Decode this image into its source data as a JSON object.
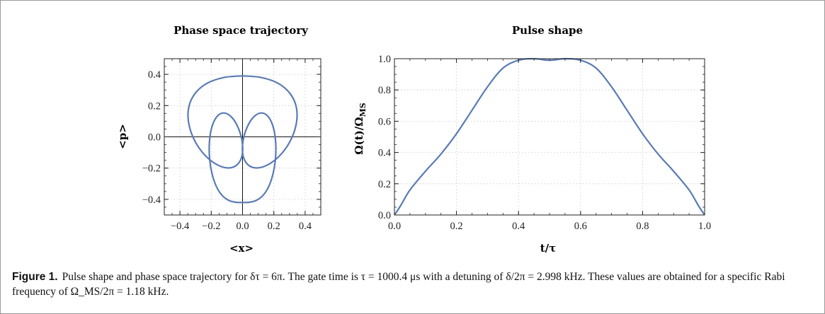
{
  "chart_data": [
    {
      "type": "line",
      "title": "Phase space trajectory",
      "xlabel": "<x>",
      "ylabel": "<p>",
      "xlim": [
        -0.5,
        0.5
      ],
      "ylim": [
        -0.5,
        0.5
      ],
      "xticks": [
        "−0.4",
        "−0.2",
        "0.0",
        "0.2",
        "0.4"
      ],
      "yticks": [
        "−0.4",
        "−0.2",
        "0.0",
        "0.2",
        "0.4"
      ],
      "grid": true,
      "series": [
        {
          "color": "#5b7bb4",
          "x": [
            0.0,
            0.119,
            0.228,
            0.306,
            0.345,
            0.342,
            0.303,
            0.238,
            0.161,
            0.087,
            0.031,
            0.002,
            0.003,
            0.029,
            0.072,
            0.121,
            0.165,
            0.197,
            0.212,
            0.21,
            0.194,
            0.167,
            0.132,
            0.091,
            0.047,
            0.0,
            -0.047,
            -0.091,
            -0.132,
            -0.167,
            -0.194,
            -0.21,
            -0.212,
            -0.197,
            -0.165,
            -0.121,
            -0.072,
            -0.029,
            -0.003,
            -0.002,
            -0.031,
            -0.087,
            -0.161,
            -0.238,
            -0.303,
            -0.342,
            -0.345,
            -0.306,
            -0.228,
            -0.119,
            0.0
          ],
          "y": [
            0.39,
            0.38,
            0.342,
            0.274,
            0.183,
            0.077,
            -0.03,
            -0.12,
            -0.179,
            -0.199,
            -0.175,
            -0.114,
            -0.027,
            0.061,
            0.128,
            0.153,
            0.128,
            0.059,
            -0.039,
            -0.145,
            -0.24,
            -0.318,
            -0.373,
            -0.405,
            -0.418,
            -0.42,
            -0.418,
            -0.405,
            -0.373,
            -0.318,
            -0.24,
            -0.145,
            -0.039,
            0.059,
            0.128,
            0.153,
            0.128,
            0.061,
            -0.027,
            -0.114,
            -0.175,
            -0.199,
            -0.179,
            -0.12,
            -0.03,
            0.077,
            0.183,
            0.274,
            0.342,
            0.38,
            0.39
          ]
        }
      ]
    },
    {
      "type": "line",
      "title": "Pulse shape",
      "xlabel": "t/τ",
      "ylabel": "Ω(t)/Ω",
      "ylabel_sub": "MS",
      "xlim": [
        0,
        1
      ],
      "ylim": [
        0,
        1
      ],
      "xticks": [
        "0.0",
        "0.2",
        "0.4",
        "0.6",
        "0.8",
        "1.0"
      ],
      "yticks": [
        "0.0",
        "0.2",
        "0.4",
        "0.6",
        "0.8",
        "1.0"
      ],
      "grid": true,
      "series": [
        {
          "color": "#5b7bb4",
          "x": [
            0.0,
            0.02,
            0.05,
            0.1,
            0.15,
            0.2,
            0.25,
            0.3,
            0.35,
            0.4,
            0.45,
            0.5,
            0.55,
            0.6,
            0.65,
            0.7,
            0.75,
            0.8,
            0.85,
            0.9,
            0.95,
            0.98,
            1.0
          ],
          "y": [
            0.0,
            0.06,
            0.16,
            0.28,
            0.39,
            0.52,
            0.67,
            0.82,
            0.94,
            0.99,
            1.0,
            0.99,
            1.0,
            0.99,
            0.94,
            0.82,
            0.67,
            0.52,
            0.39,
            0.28,
            0.16,
            0.06,
            0.0
          ]
        }
      ]
    }
  ],
  "caption": {
    "label": "Figure 1.",
    "text": "Pulse shape and phase space trajectory for δτ = 6π. The gate time is τ = 1000.4 μs with a detuning of δ/2π = 2.998 kHz. These values are obtained for a specific Rabi frequency of Ω_MS/2π = 1.18 kHz."
  },
  "style": {
    "axis_color": "#222222",
    "grid_color": "#c8c8c8"
  }
}
